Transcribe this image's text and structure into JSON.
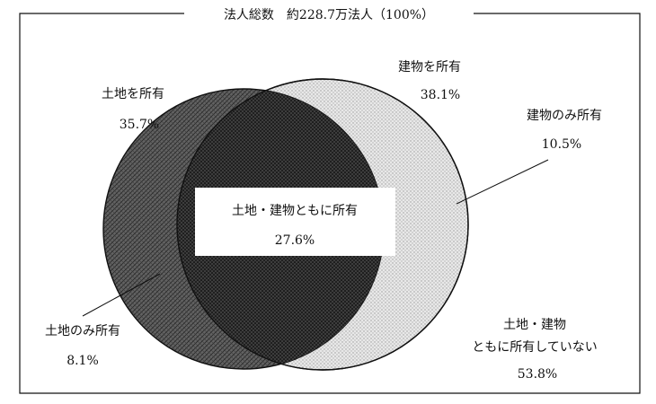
{
  "title": "法人総数　約228.7万法人（100%）",
  "colors": {
    "land_fill": "#5a5a5a",
    "building_fill": "#e4e4e4",
    "overlap_fill": "#3f3f3f",
    "line": "#111111",
    "background": "#ffffff"
  },
  "sets": {
    "land": {
      "label": "土地を所有",
      "value": "35.7%"
    },
    "building": {
      "label": "建物を所有",
      "value": "38.1%"
    }
  },
  "regions": {
    "both": {
      "label": "土地・建物ともに所有",
      "value": "27.6%"
    },
    "building_only": {
      "label": "建物のみ所有",
      "value": "10.5%"
    },
    "land_only": {
      "label": "土地のみ所有",
      "value": "8.1%"
    },
    "neither": {
      "label_line1": "土地・建物",
      "label_line2": "ともに所有していない",
      "value": "53.8%"
    }
  }
}
